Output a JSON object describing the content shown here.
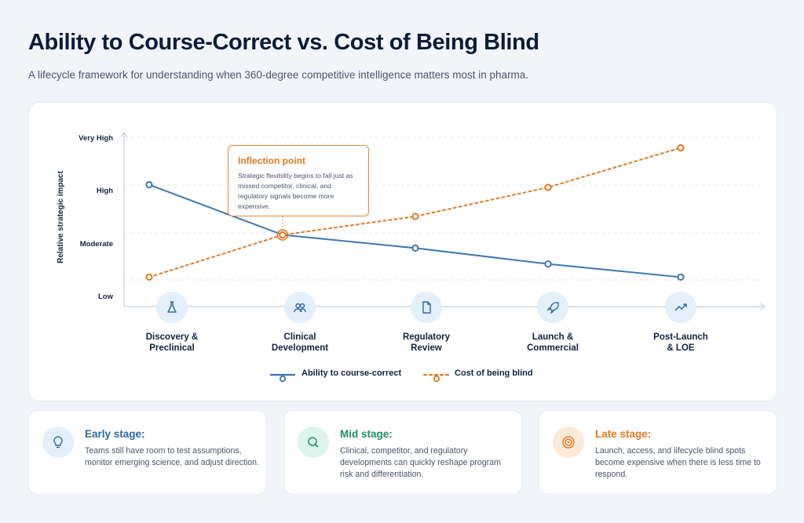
{
  "header": {
    "title": "Ability to Course-Correct vs. Cost of Being Blind",
    "subtitle": "A lifecycle framework for understanding when 360-degree competitive intelligence matters most in pharma."
  },
  "chart_data": {
    "type": "line",
    "ylabel": "Relative strategic impact",
    "xlabel": "",
    "y_tick_labels": [
      "Low",
      "Moderate",
      "High",
      "Very High"
    ],
    "ylim": [
      1,
      4
    ],
    "grid": true,
    "legend_position": "bottom-center",
    "categories": [
      "Discovery & Preclinical",
      "Clinical Development",
      "Regulatory Review",
      "Launch & Commercial",
      "Post-Launch & LOE"
    ],
    "category_lines": [
      [
        "Discovery &",
        "Preclinical"
      ],
      [
        "Clinical",
        "Development"
      ],
      [
        "Regulatory",
        "Review"
      ],
      [
        "Launch &",
        "Commercial"
      ],
      [
        "Post-Launch",
        "& LOE"
      ]
    ],
    "category_icons": [
      "flask-icon",
      "users-icon",
      "document-icon",
      "rocket-icon",
      "trend-up-icon"
    ],
    "series": [
      {
        "name": "Ability to course-correct",
        "values": [
          3.1,
          2.15,
          1.9,
          1.6,
          1.35
        ],
        "color": "#3a78b5",
        "style": "solid"
      },
      {
        "name": "Cost of being blind",
        "values": [
          1.35,
          2.15,
          2.5,
          3.05,
          3.8
        ],
        "color": "#e07a20",
        "style": "dotted"
      }
    ],
    "annotation": {
      "title": "Inflection point",
      "text": "Strategic flexibility begins to fall just as missed competitor, clinical, and regulatory signals become more expensive.",
      "at_category": "Clinical Development"
    }
  },
  "cards": [
    {
      "title": "Early stage:",
      "text": "Teams still have room to test assumptions, monitor emerging science, and adjust direction.",
      "color": "#2b6aa6",
      "bg": "#e3effb",
      "icon": "lightbulb-icon"
    },
    {
      "title": "Mid stage:",
      "text": "Clinical, competitor, and regulatory developments can quickly reshape program risk and differentiation.",
      "color": "#1f8f6b",
      "bg": "#dcf4ec",
      "icon": "search-icon"
    },
    {
      "title": "Late stage:",
      "text": "Launch, access, and lifecycle blind spots become expensive when there is less time to respond.",
      "color": "#e07a20",
      "bg": "#fde9d8",
      "icon": "target-icon"
    }
  ]
}
